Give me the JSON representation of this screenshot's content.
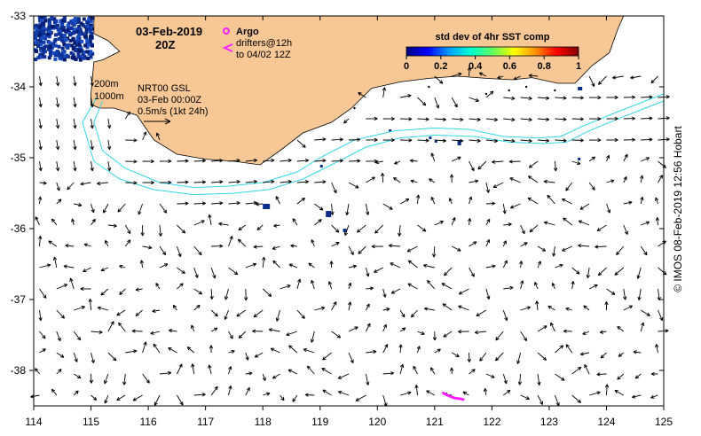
{
  "map": {
    "lon_min": 114,
    "lon_max": 125,
    "lat_min": -38.5,
    "lat_max": -33,
    "lon_ticks": [
      114,
      115,
      116,
      117,
      118,
      119,
      120,
      121,
      122,
      123,
      124,
      125
    ],
    "lat_ticks": [
      -33,
      -34,
      -35,
      -36,
      -37,
      -38
    ],
    "land_color": "#f7c795",
    "contour_color": "#33d6e6",
    "arrow_color": "#000000",
    "argo_color": "#ff22ff",
    "sst_patch_color": "#0a2d8c"
  },
  "header": {
    "date": "03-Feb-2019",
    "time": "20Z",
    "argo_label": "Argo",
    "drifters_line1": "drifters@12h",
    "drifters_line2": "to 04/02 12Z"
  },
  "contours": {
    "label_200": "200m",
    "label_1000": "1000m"
  },
  "currents": {
    "product": "NRT00 GSL",
    "valid_time": "03-Feb 00:00Z",
    "scale_label": "0.5m/s (1kt 24h)"
  },
  "colorbar": {
    "title": "std dev of 4hr SST comp",
    "ticks": [
      "0",
      "0.2",
      "0.4",
      "0.6",
      "0.8",
      "1"
    ],
    "stops": [
      "#000080",
      "#0000ff",
      "#00a0ff",
      "#00ffd0",
      "#60ff60",
      "#ffff00",
      "#ff9000",
      "#ff0000",
      "#800000"
    ]
  },
  "credit": "© IMOS 08-Feb-2019 12:56 Hobart"
}
